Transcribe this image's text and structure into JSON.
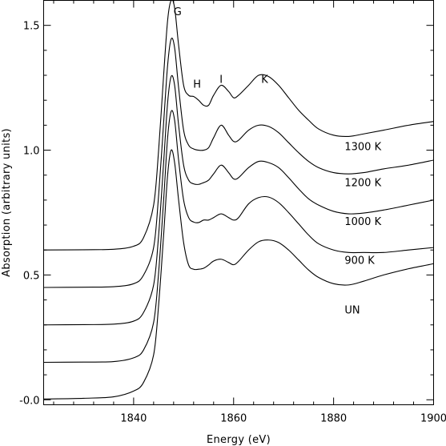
{
  "chart_data": {
    "type": "line",
    "title": "",
    "xlabel": "Energy (eV)",
    "ylabel": "Absorption (arbitrary units)",
    "xlim": [
      1822,
      1900
    ],
    "ylim": [
      -0.02,
      1.6
    ],
    "x_ticks": [
      1840,
      1860,
      1880,
      1900
    ],
    "x_tick_labels": [
      "1840",
      "1860",
      "1880",
      "1900"
    ],
    "y_ticks": [
      0.0,
      0.5,
      1.0,
      1.5
    ],
    "y_tick_labels": [
      "-0.0",
      "0.5",
      "1.0",
      "1.5"
    ],
    "grid": false,
    "legend": "none",
    "x": [
      1822,
      1830,
      1836,
      1840,
      1842,
      1844,
      1845,
      1846,
      1846.8,
      1847.5,
      1848.2,
      1849,
      1850,
      1851,
      1852,
      1853,
      1854,
      1855,
      1856,
      1857.5,
      1859,
      1860,
      1861,
      1863,
      1865,
      1867,
      1869,
      1871,
      1873,
      1875,
      1877,
      1880,
      1883,
      1886,
      1890,
      1895,
      1900
    ],
    "series": [
      {
        "name": "UN",
        "values": [
          0.003,
          0.006,
          0.012,
          0.035,
          0.07,
          0.18,
          0.38,
          0.66,
          0.9,
          1.0,
          0.95,
          0.8,
          0.63,
          0.54,
          0.523,
          0.523,
          0.527,
          0.54,
          0.556,
          0.563,
          0.55,
          0.541,
          0.555,
          0.6,
          0.633,
          0.64,
          0.63,
          0.6,
          0.56,
          0.52,
          0.49,
          0.465,
          0.46,
          0.475,
          0.5,
          0.525,
          0.545
        ]
      },
      {
        "name": "900 K",
        "values": [
          0.15,
          0.151,
          0.153,
          0.168,
          0.2,
          0.31,
          0.51,
          0.8,
          1.05,
          1.155,
          1.12,
          0.96,
          0.8,
          0.73,
          0.712,
          0.71,
          0.72,
          0.72,
          0.73,
          0.745,
          0.73,
          0.72,
          0.73,
          0.785,
          0.81,
          0.812,
          0.79,
          0.75,
          0.705,
          0.66,
          0.625,
          0.6,
          0.59,
          0.59,
          0.59,
          0.6,
          0.61
        ]
      },
      {
        "name": "1000 K",
        "values": [
          0.3,
          0.301,
          0.303,
          0.315,
          0.35,
          0.46,
          0.66,
          0.95,
          1.19,
          1.295,
          1.26,
          1.1,
          0.94,
          0.88,
          0.865,
          0.863,
          0.87,
          0.88,
          0.905,
          0.94,
          0.91,
          0.885,
          0.89,
          0.93,
          0.955,
          0.95,
          0.93,
          0.89,
          0.845,
          0.805,
          0.78,
          0.755,
          0.745,
          0.748,
          0.76,
          0.78,
          0.8
        ]
      },
      {
        "name": "1200 K",
        "values": [
          0.45,
          0.451,
          0.453,
          0.465,
          0.5,
          0.61,
          0.82,
          1.11,
          1.34,
          1.445,
          1.41,
          1.25,
          1.08,
          1.02,
          1.005,
          1.0,
          1.0,
          1.01,
          1.05,
          1.1,
          1.06,
          1.035,
          1.04,
          1.08,
          1.1,
          1.095,
          1.07,
          1.03,
          0.99,
          0.955,
          0.93,
          0.91,
          0.905,
          0.91,
          0.925,
          0.94,
          0.96
        ]
      },
      {
        "name": "1300 K",
        "values": [
          0.6,
          0.601,
          0.603,
          0.615,
          0.65,
          0.78,
          1.0,
          1.3,
          1.52,
          1.6,
          1.57,
          1.42,
          1.26,
          1.22,
          1.215,
          1.2,
          1.18,
          1.18,
          1.22,
          1.26,
          1.235,
          1.21,
          1.22,
          1.26,
          1.3,
          1.295,
          1.26,
          1.21,
          1.16,
          1.12,
          1.085,
          1.06,
          1.055,
          1.065,
          1.08,
          1.1,
          1.115
        ]
      }
    ],
    "peak_labels": [
      {
        "text": "G",
        "x": 1848.8,
        "y": 1.54
      },
      {
        "text": "H",
        "x": 1852.7,
        "y": 1.25
      },
      {
        "text": "I",
        "x": 1857.5,
        "y": 1.27
      },
      {
        "text": "K",
        "x": 1866.2,
        "y": 1.27
      }
    ],
    "series_labels": [
      {
        "text": "1300 K",
        "x": 1882.2,
        "y": 1.0
      },
      {
        "text": "1200 K",
        "x": 1882.2,
        "y": 0.855
      },
      {
        "text": "1000 K",
        "x": 1882.2,
        "y": 0.7
      },
      {
        "text": "900 K",
        "x": 1882.2,
        "y": 0.545
      },
      {
        "text": "UN",
        "x": 1882.2,
        "y": 0.345
      }
    ]
  }
}
